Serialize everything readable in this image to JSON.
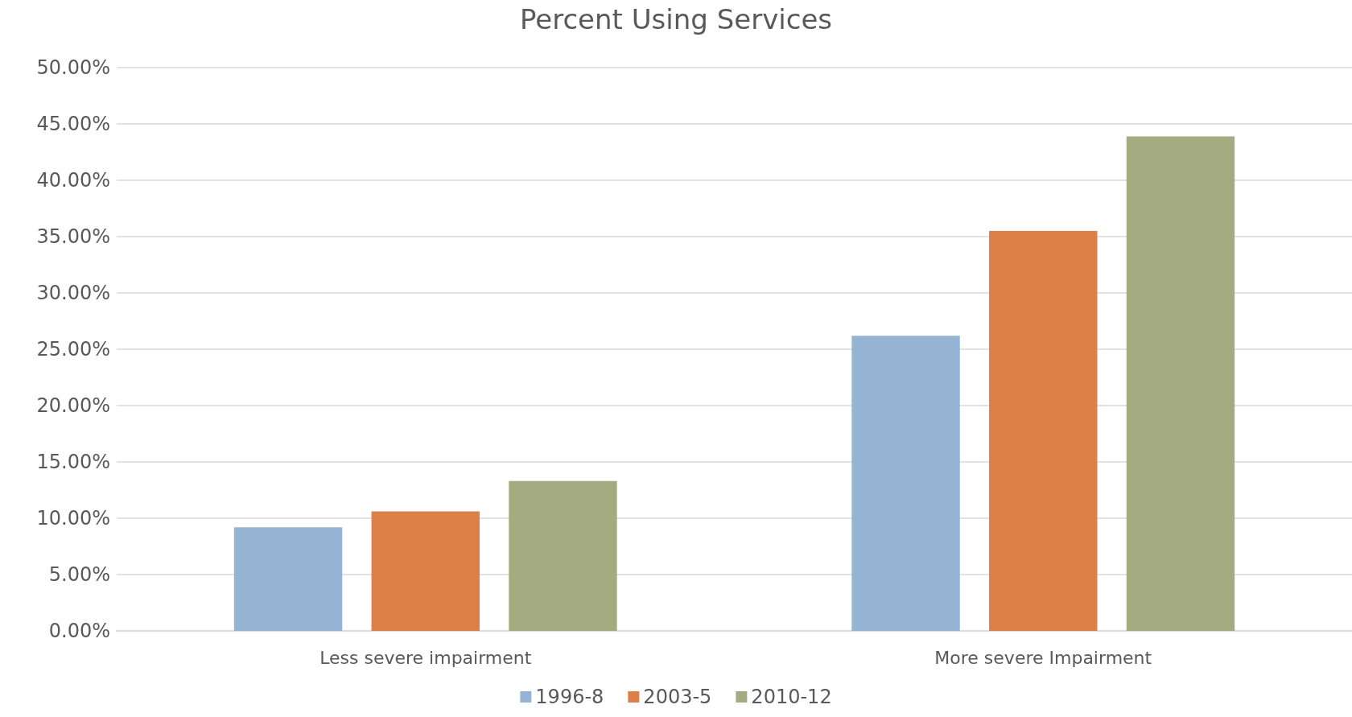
{
  "chart_data": {
    "type": "bar",
    "title": "Percent Using Services",
    "categories": [
      "Less severe impairment",
      "More severe Impairment"
    ],
    "series": [
      {
        "name": "1996-8",
        "color": "#95b3d2",
        "values": [
          9.2,
          26.2
        ]
      },
      {
        "name": "2003-5",
        "color": "#dd8047",
        "values": [
          10.6,
          35.5
        ]
      },
      {
        "name": "2010-12",
        "color": "#a5ab81",
        "values": [
          13.3,
          43.9
        ]
      }
    ],
    "ylim": [
      0,
      50
    ],
    "yticks": [
      {
        "value": 0,
        "label": "0.00%"
      },
      {
        "value": 5,
        "label": "5.00%"
      },
      {
        "value": 10,
        "label": "10.00%"
      },
      {
        "value": 15,
        "label": "15.00%"
      },
      {
        "value": 20,
        "label": "20.00%"
      },
      {
        "value": 25,
        "label": "25.00%"
      },
      {
        "value": 30,
        "label": "30.00%"
      },
      {
        "value": 35,
        "label": "35.00%"
      },
      {
        "value": 40,
        "label": "40.00%"
      },
      {
        "value": 45,
        "label": "45.00%"
      },
      {
        "value": 50,
        "label": "50.00%"
      }
    ],
    "grid": "y",
    "legend": "bottom"
  }
}
